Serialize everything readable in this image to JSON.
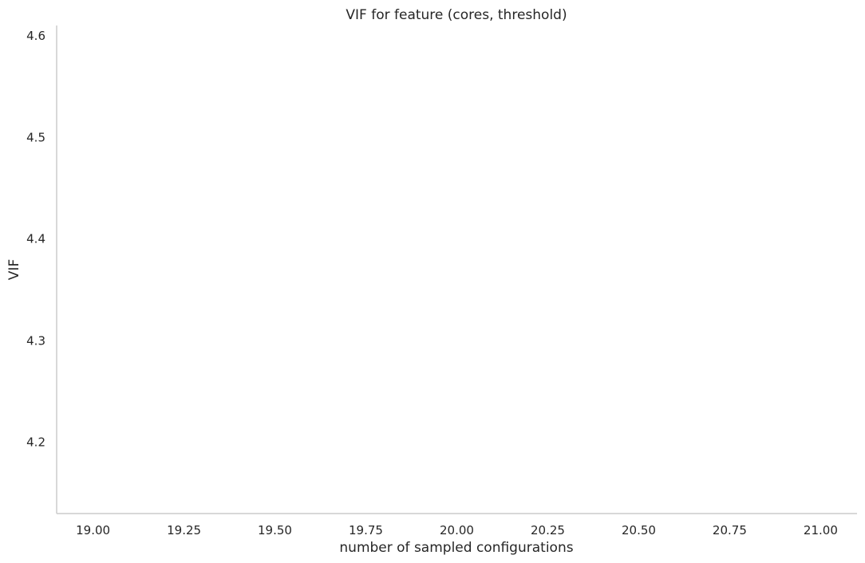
{
  "chart_data": {
    "type": "line",
    "title": "VIF for feature (cores, threshold)",
    "xlabel": "number of sampled configurations",
    "ylabel": "VIF",
    "xlim": [
      18.9,
      21.1
    ],
    "ylim": [
      4.13,
      4.61
    ],
    "x_ticks": [
      19.0,
      19.25,
      19.5,
      19.75,
      20.0,
      20.25,
      20.5,
      20.75,
      21.0
    ],
    "x_tick_labels": [
      "19.00",
      "19.25",
      "19.50",
      "19.75",
      "20.00",
      "20.25",
      "20.50",
      "20.75",
      "21.00"
    ],
    "y_ticks": [
      4.2,
      4.3,
      4.4,
      4.5,
      4.6
    ],
    "y_tick_labels": [
      "4.2",
      "4.3",
      "4.4",
      "4.5",
      "4.6"
    ],
    "grid": false,
    "series": []
  }
}
